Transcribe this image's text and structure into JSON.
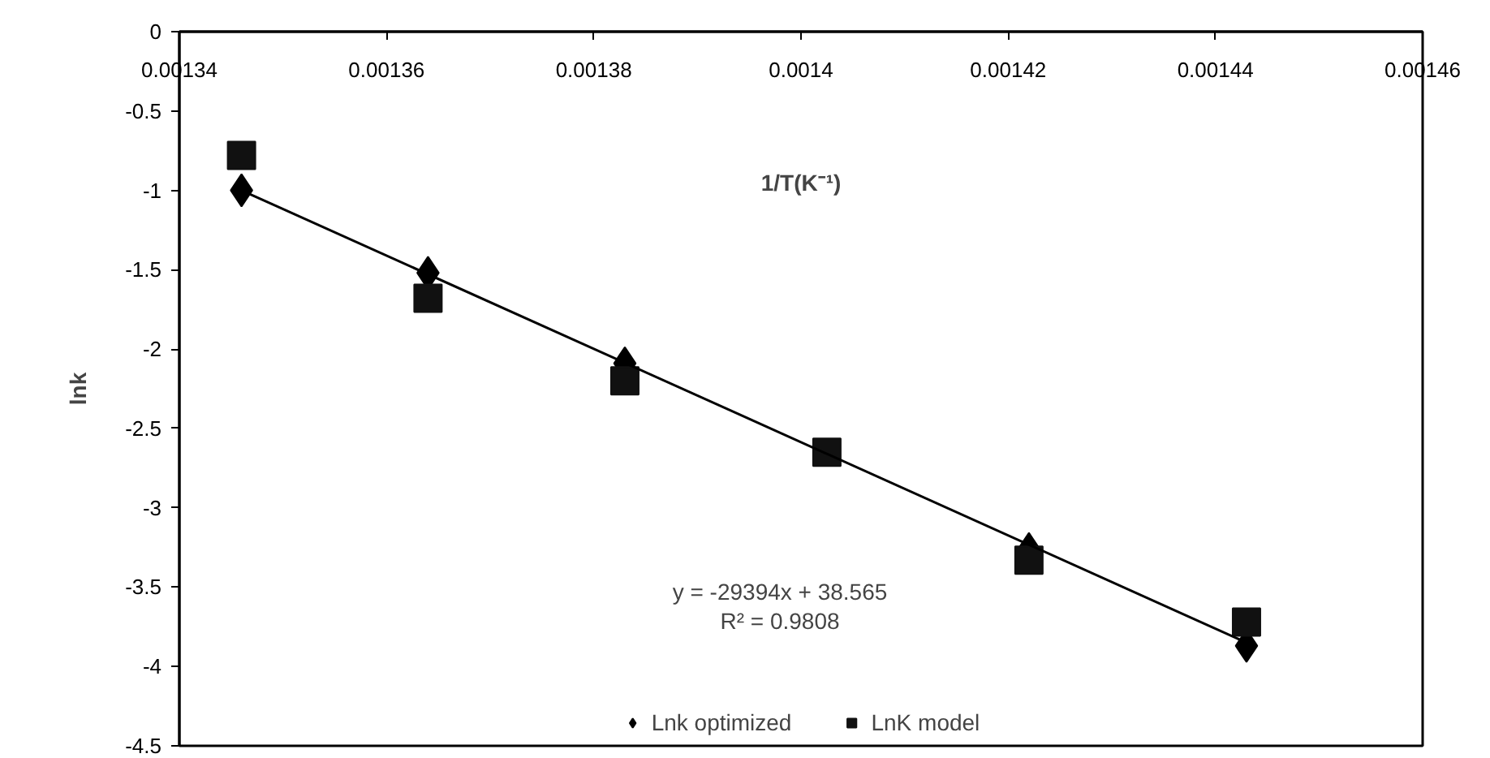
{
  "chart_data": {
    "type": "scatter",
    "xlabel": "1/T(K⁻¹)",
    "ylabel": "lnk",
    "xlim": [
      0.00134,
      0.00146
    ],
    "xticks": [
      0.00134,
      0.00136,
      0.00138,
      0.0014,
      0.00142,
      0.00144,
      0.00146
    ],
    "ylim": [
      -4.5,
      0
    ],
    "yticks": [
      0,
      -0.5,
      -1,
      -1.5,
      -2,
      -2.5,
      -3,
      -3.5,
      -4,
      -4.5
    ],
    "x": [
      0.001346,
      0.001364,
      0.001383,
      0.0014025,
      0.001422,
      0.001443
    ],
    "series": [
      {
        "name": "Lnk optimized",
        "color": "#000000",
        "marker": "diamond",
        "values": [
          -1.0,
          -1.52,
          -2.09,
          null,
          -3.26,
          -3.87
        ]
      },
      {
        "name": "LnK model",
        "color": "#111111",
        "marker": "square",
        "values": [
          -0.78,
          -1.68,
          -2.2,
          -2.65,
          -3.33,
          -3.72
        ]
      },
      {
        "type": "line",
        "color": "#000000",
        "x": [
          0.001346,
          0.001443
        ],
        "values": [
          -1.0,
          -3.85
        ]
      }
    ],
    "annotations": [
      "y = -29394x + 38.565",
      "R² = 0.9808"
    ],
    "legend": "bottom",
    "grid": false
  }
}
